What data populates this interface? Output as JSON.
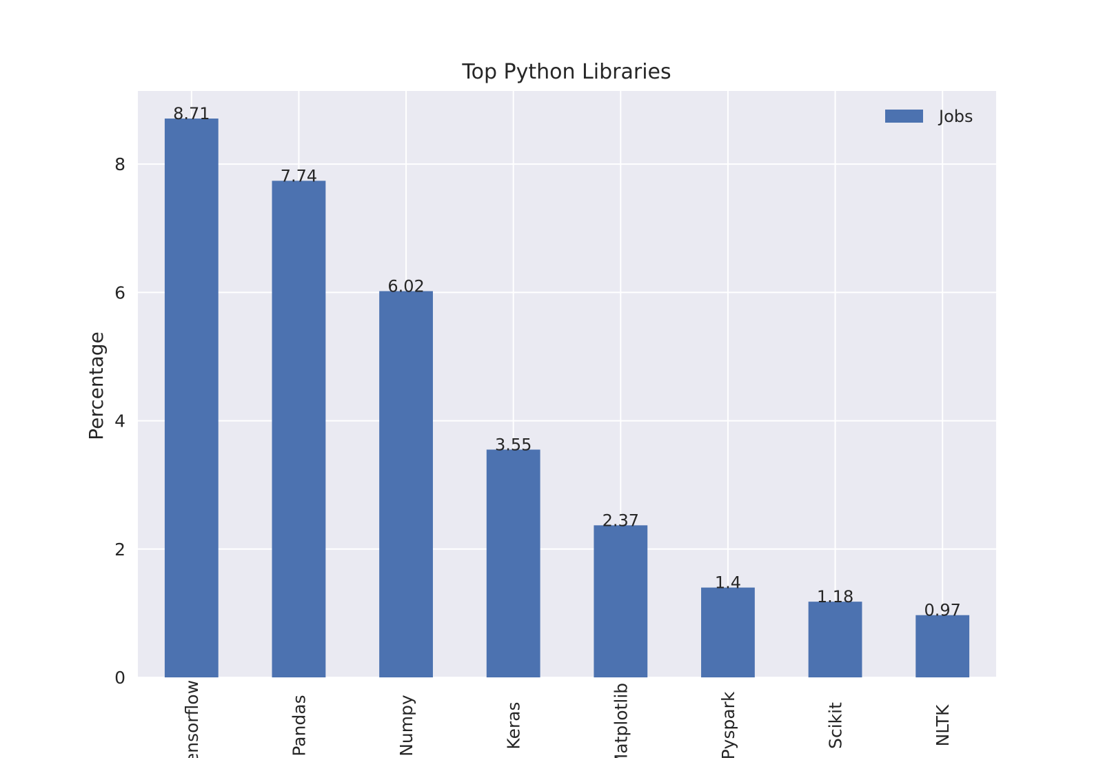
{
  "chart_data": {
    "type": "bar",
    "title": "Top Python Libraries",
    "xlabel": "",
    "ylabel": "Percentage",
    "categories": [
      "Tensorflow",
      "Pandas",
      "Numpy",
      "Keras",
      "Matplotlib",
      "Pyspark",
      "Scikit",
      "NLTK"
    ],
    "series": [
      {
        "name": "Jobs",
        "values": [
          8.71,
          7.74,
          6.02,
          3.55,
          2.37,
          1.4,
          1.18,
          0.97
        ],
        "value_labels": [
          "8.71",
          "7.74",
          "6.02",
          "3.55",
          "2.37",
          "1.4",
          "1.18",
          "0.97"
        ]
      }
    ],
    "ylim": [
      0,
      9.14
    ],
    "yticks": [
      0,
      2,
      4,
      6,
      8
    ],
    "ytick_labels": [
      "0",
      "2",
      "4",
      "6",
      "8"
    ],
    "grid": true,
    "legend_position": "top-right",
    "colors": {
      "bar": "#4c72b0",
      "plot_background": "#eaeaf2",
      "grid": "#ffffff",
      "text": "#262626"
    }
  }
}
